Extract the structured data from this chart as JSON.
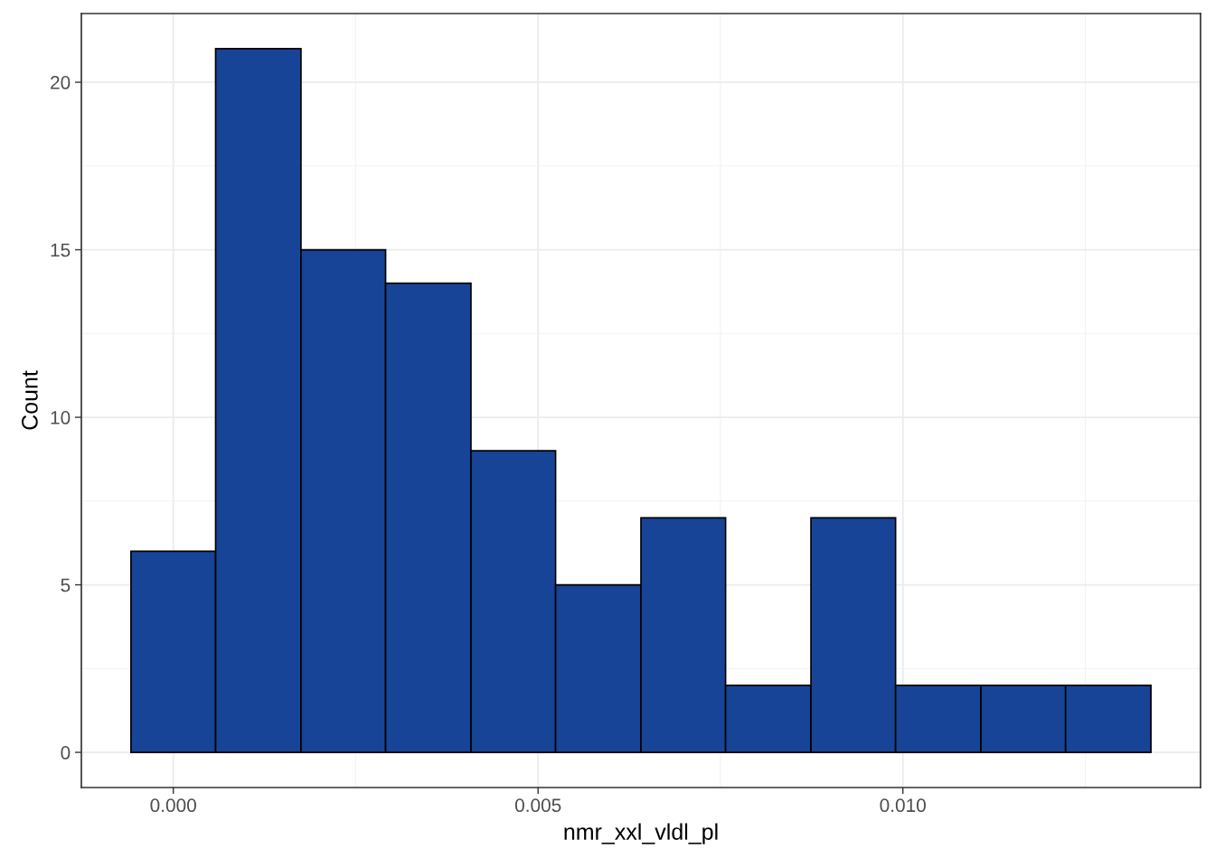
{
  "chart_data": {
    "type": "histogram",
    "xlabel": "nmr_xxl_vldl_pl",
    "ylabel": "Count",
    "bins": [
      -0.00058,
      0.00058,
      0.00175,
      0.00291,
      0.00408,
      0.00524,
      0.00641,
      0.00757,
      0.00874,
      0.0099,
      0.01107,
      0.01223,
      0.0134
    ],
    "values": [
      6,
      21,
      15,
      14,
      9,
      5,
      7,
      2,
      7,
      2,
      2,
      2
    ],
    "color": "#174497",
    "xlim": [
      -0.00126,
      0.01408
    ],
    "xticks": [
      {
        "value": 0,
        "label": "0.000"
      },
      {
        "value": 0.005,
        "label": "0.005"
      },
      {
        "value": 0.01,
        "label": "0.010"
      }
    ],
    "ylim": [
      -1.05,
      22.05
    ],
    "yticks": [
      0,
      5,
      10,
      15,
      20
    ],
    "grid": true
  }
}
